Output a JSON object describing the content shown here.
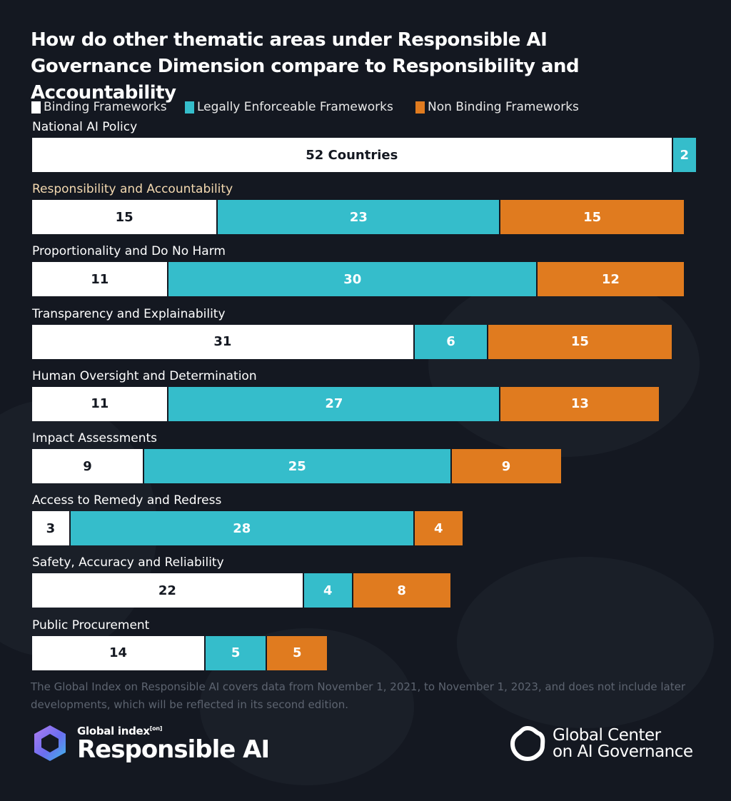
{
  "title": "How do other thematic areas under Responsible AI Governance Dimension compare to Responsibility and Accountability",
  "legend": [
    {
      "label": "Binding Frameworks",
      "color": "#ffffff"
    },
    {
      "label": "Legally Enforceable Frameworks",
      "color": "#35bdcb"
    },
    {
      "label": "Non Binding Frameworks",
      "color": "#e07b1f"
    }
  ],
  "chart_data": {
    "type": "bar",
    "orientation": "horizontal",
    "stacked": true,
    "categories": [
      "National AI Policy",
      "Responsibility and Accountability",
      "Proportionality and Do No Harm",
      "Transparency and Explainability",
      "Human Oversight and Determination",
      "Impact Assessments",
      "Access to Remedy and Redress",
      "Safety, Accuracy and Reliability",
      "Public Procurement"
    ],
    "highlighted_category": "Responsibility and Accountability",
    "series": [
      {
        "name": "Binding Frameworks",
        "color": "#ffffff",
        "values": [
          52,
          15,
          11,
          31,
          11,
          9,
          3,
          22,
          14
        ]
      },
      {
        "name": "Legally Enforceable Frameworks",
        "color": "#35bdcb",
        "values": [
          2,
          23,
          30,
          6,
          27,
          25,
          28,
          4,
          5
        ]
      },
      {
        "name": "Non Binding Frameworks",
        "color": "#e07b1f",
        "values": [
          0,
          15,
          12,
          15,
          13,
          9,
          4,
          8,
          5
        ]
      }
    ],
    "data_labels": [
      [
        "52 Countries",
        "2",
        ""
      ],
      [
        "15",
        "23",
        "15"
      ],
      [
        "11",
        "30",
        "12"
      ],
      [
        "31",
        "6",
        "15"
      ],
      [
        "11",
        "27",
        "13"
      ],
      [
        "9",
        "25",
        "9"
      ],
      [
        "3",
        "28",
        "4"
      ],
      [
        "22",
        "4",
        "8"
      ],
      [
        "14",
        "5",
        "5"
      ]
    ],
    "xlim": [
      0,
      54
    ],
    "legend_position": "top-left",
    "grid": false
  },
  "footnote": "The Global Index on Responsible AI covers data from November 1, 2021, to November 1, 2023, and does not include later developments, which will be reflected in its second edition.",
  "logos": {
    "left_small": "Global index",
    "left_sup": "[on]",
    "left_big": "Responsible AI",
    "right_line1": "Global Center",
    "right_line2": "on AI Governance"
  }
}
